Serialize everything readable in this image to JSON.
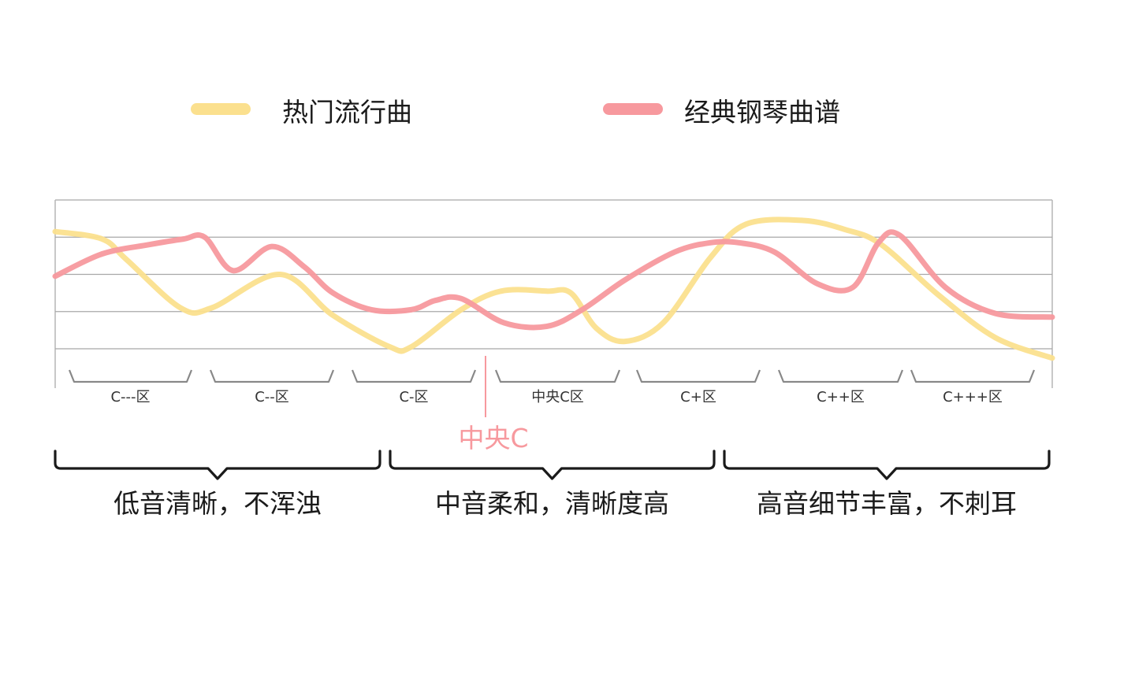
{
  "legend": [
    {
      "label": "热门流行曲",
      "color": "#FBE08E"
    },
    {
      "label": "经典钢琴曲谱",
      "color": "#F7999E"
    }
  ],
  "octave_labels": [
    "C---区",
    "C--区",
    "C-区",
    "中央C区",
    "C+区",
    "C++区",
    "C+++区"
  ],
  "middle_c_marker": {
    "label": "中央C",
    "color": "#F7999E"
  },
  "range_groups": [
    {
      "label": "低音清晰，不浑浊"
    },
    {
      "label": "中音柔和，清晰度高"
    },
    {
      "label": "高音细节丰富，不刺耳"
    }
  ],
  "chart_data": {
    "type": "line",
    "title": "",
    "xlabel": "",
    "ylabel": "",
    "x_range": [
      0,
      7
    ],
    "y_range": [
      0,
      4
    ],
    "grid": true,
    "legend_position": "top",
    "series": [
      {
        "name": "热门流行曲",
        "color": "#FBE08E",
        "x": [
          0,
          0.33,
          0.5,
          0.88,
          1.1,
          1.58,
          1.95,
          2.35,
          2.5,
          2.85,
          3.13,
          3.45,
          3.62,
          3.8,
          4.0,
          4.27,
          4.6,
          4.85,
          5.25,
          5.55,
          5.8,
          6.2,
          6.6,
          7.0
        ],
        "y": [
          3.15,
          2.95,
          2.4,
          1.1,
          1.1,
          2.0,
          0.9,
          0.05,
          0.05,
          1.05,
          1.55,
          1.55,
          1.5,
          0.55,
          0.2,
          0.7,
          2.45,
          3.35,
          3.45,
          3.2,
          2.8,
          1.45,
          0.3,
          -0.25
        ]
      },
      {
        "name": "经典钢琴曲谱",
        "color": "#F7999E",
        "x": [
          0,
          0.33,
          0.66,
          0.9,
          1.05,
          1.25,
          1.52,
          1.75,
          1.95,
          2.22,
          2.5,
          2.67,
          2.85,
          3.15,
          3.45,
          3.7,
          4.0,
          4.35,
          4.6,
          4.8,
          5.05,
          5.35,
          5.6,
          5.78,
          5.93,
          6.25,
          6.6,
          7.0
        ],
        "y": [
          1.95,
          2.55,
          2.8,
          2.95,
          3.0,
          2.1,
          2.75,
          2.2,
          1.5,
          1.05,
          1.05,
          1.3,
          1.35,
          0.7,
          0.6,
          1.05,
          1.85,
          2.6,
          2.85,
          2.85,
          2.6,
          1.75,
          1.65,
          2.85,
          3.05,
          1.65,
          0.95,
          0.85
        ]
      }
    ],
    "annotations": [
      "中央C"
    ]
  }
}
